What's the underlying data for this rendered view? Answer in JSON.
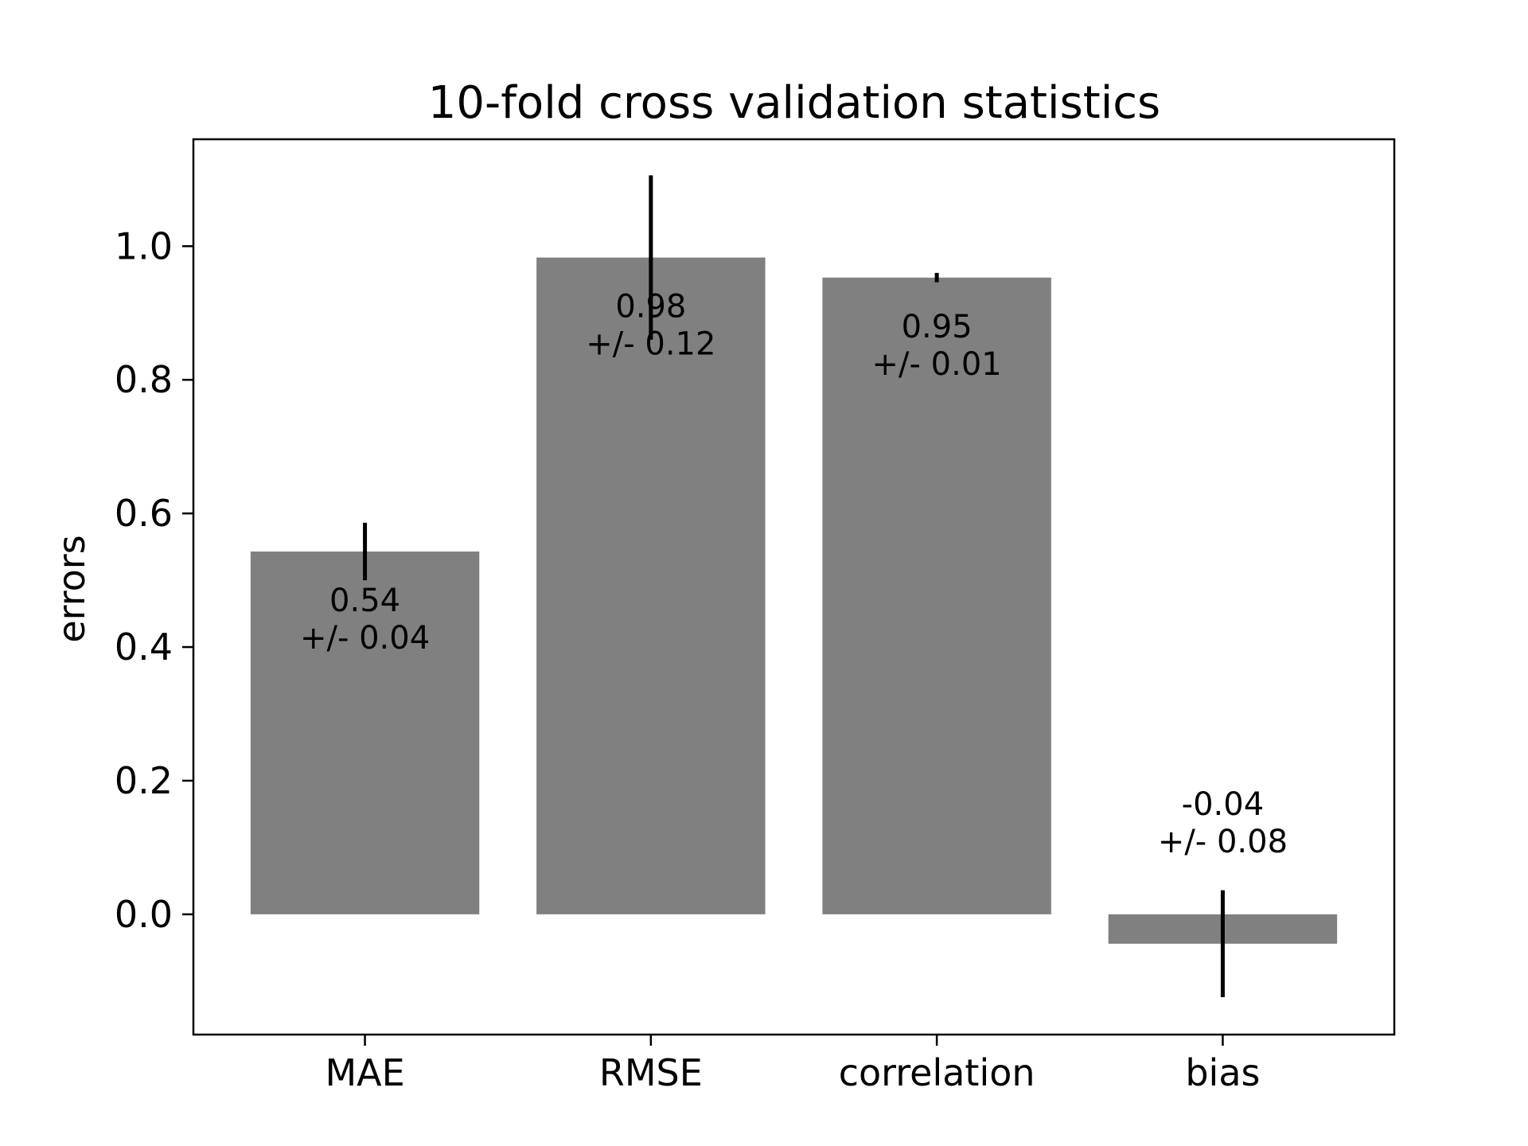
{
  "chart_data": {
    "type": "bar",
    "title": "10-fold cross validation statistics",
    "xlabel": "",
    "ylabel": "errors",
    "categories": [
      "MAE",
      "RMSE",
      "correlation",
      "bias"
    ],
    "values": [
      0.543,
      0.983,
      0.953,
      -0.044
    ],
    "errors": [
      0.043,
      0.123,
      0.007,
      0.08
    ],
    "value_labels": [
      "0.54",
      "0.98",
      "0.95",
      "-0.04"
    ],
    "error_labels": [
      "+/- 0.04",
      "+/- 0.12",
      "+/- 0.01",
      "+/- 0.08"
    ],
    "ylim": [
      -0.18,
      1.16
    ],
    "yticks": [
      0.0,
      0.2,
      0.4,
      0.6,
      0.8,
      1.0
    ],
    "ytick_labels": [
      "0.0",
      "0.2",
      "0.4",
      "0.6",
      "0.8",
      "1.0"
    ],
    "grid": false,
    "legend": "none",
    "bar_color": "#808080",
    "error_color": "#000000"
  }
}
